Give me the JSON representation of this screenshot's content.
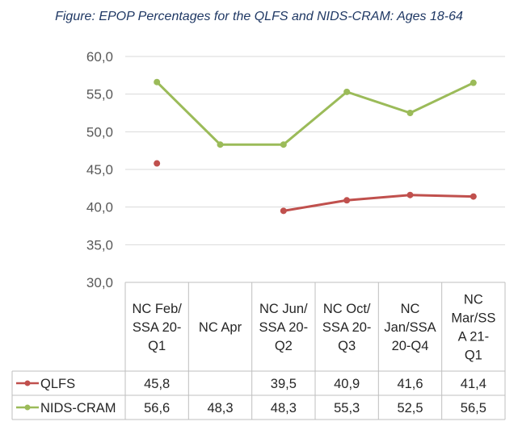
{
  "chart_data": {
    "type": "line",
    "title": "Figure: EPOP Percentages for the QLFS and NIDS-CRAM: Ages 18-64",
    "categories": [
      [
        "NC Feb/",
        "SSA 20-",
        "Q1"
      ],
      [
        "NC Apr"
      ],
      [
        "NC Jun/",
        "SSA 20-",
        "Q2"
      ],
      [
        "NC Oct/",
        "SSA 20-",
        "Q3"
      ],
      [
        "NC",
        "Jan/SSA",
        "20-Q4"
      ],
      [
        "NC",
        "Mar/SS",
        "A 21-",
        "Q1"
      ]
    ],
    "series": [
      {
        "name": "QLFS",
        "color": "#c0504d",
        "values": [
          45.8,
          null,
          39.5,
          40.9,
          41.6,
          41.4
        ],
        "labels": [
          "45,8",
          "",
          "39,5",
          "40,9",
          "41,6",
          "41,4"
        ]
      },
      {
        "name": "NIDS-CRAM",
        "color": "#9bbb59",
        "values": [
          56.6,
          48.3,
          48.3,
          55.3,
          52.5,
          56.5
        ],
        "labels": [
          "56,6",
          "48,3",
          "48,3",
          "55,3",
          "52,5",
          "56,5"
        ]
      }
    ],
    "ylim": [
      30,
      60
    ],
    "yticks": [
      "30,0",
      "35,0",
      "40,0",
      "45,0",
      "50,0",
      "55,0",
      "60,0"
    ],
    "grid": true,
    "legend": "data-table"
  }
}
